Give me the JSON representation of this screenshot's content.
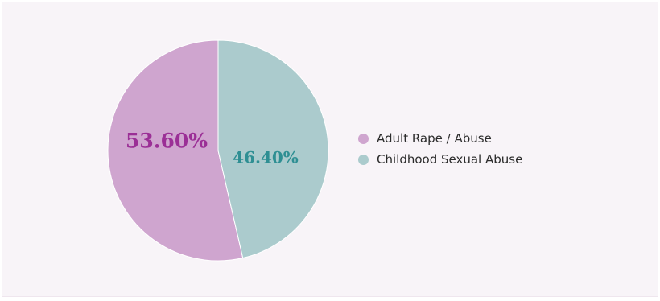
{
  "chart_data": {
    "type": "pie",
    "categories": [
      "Adult Rape / Abuse",
      "Childhood Sexual Abuse"
    ],
    "values": [
      53.6,
      46.4
    ],
    "labels": [
      "53.60%",
      "46.40%"
    ],
    "colors": [
      "#cfa5cf",
      "#abcbcd"
    ],
    "label_colors": [
      "#9b2f96",
      "#2e8f93"
    ],
    "legend_position": "right"
  }
}
